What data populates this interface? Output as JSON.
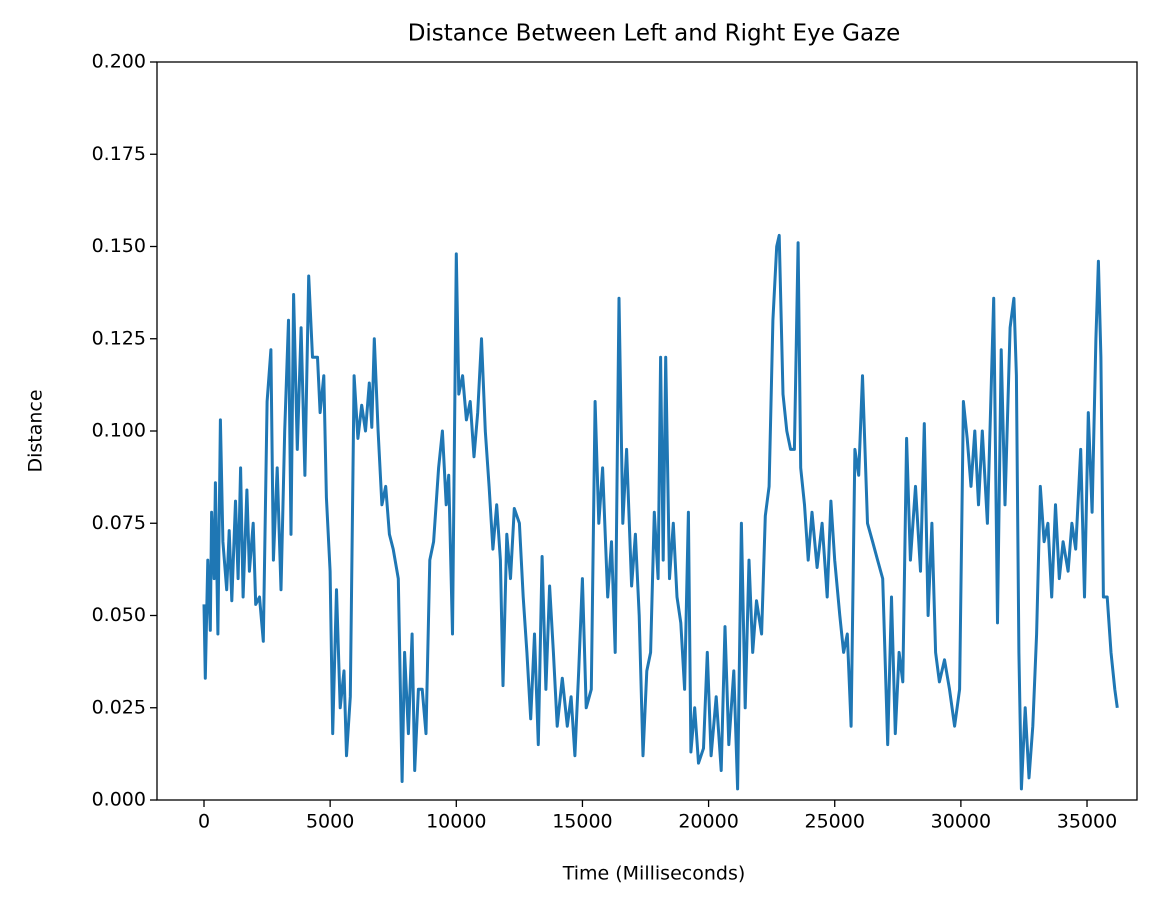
{
  "chart_data": {
    "type": "line",
    "title": "Distance Between Left and Right Eye Gaze",
    "xlabel": "Time (Milliseconds)",
    "ylabel": "Distance",
    "xlim": [
      -1863,
      36981
    ],
    "ylim": [
      0,
      0.2
    ],
    "xticks": [
      0,
      5000,
      10000,
      15000,
      20000,
      25000,
      30000,
      35000
    ],
    "yticks": [
      {
        "value": 0,
        "label": "0.000"
      },
      {
        "value": 0.025,
        "label": "0.025"
      },
      {
        "value": 0.05,
        "label": "0.050"
      },
      {
        "value": 0.075,
        "label": "0.075"
      },
      {
        "value": 0.1,
        "label": "0.100"
      },
      {
        "value": 0.125,
        "label": "0.125"
      },
      {
        "value": 0.15,
        "label": "0.150"
      },
      {
        "value": 0.175,
        "label": "0.175"
      },
      {
        "value": 0.2,
        "label": "0.200"
      }
    ],
    "x": [
      0,
      50,
      150,
      250,
      300,
      400,
      450,
      550,
      650,
      750,
      900,
      1000,
      1100,
      1250,
      1350,
      1450,
      1550,
      1700,
      1800,
      1950,
      2050,
      2200,
      2350,
      2500,
      2650,
      2750,
      2900,
      3050,
      3200,
      3350,
      3450,
      3550,
      3700,
      3850,
      4000,
      4150,
      4300,
      4500,
      4600,
      4750,
      4850,
      5000,
      5100,
      5250,
      5400,
      5550,
      5650,
      5800,
      5950,
      6100,
      6250,
      6400,
      6550,
      6650,
      6750,
      6900,
      7050,
      7200,
      7350,
      7500,
      7700,
      7850,
      7950,
      8100,
      8250,
      8350,
      8500,
      8650,
      8800,
      8950,
      9100,
      9300,
      9450,
      9600,
      9700,
      9850,
      10000,
      10100,
      10250,
      10400,
      10550,
      10700,
      10850,
      11000,
      11150,
      11300,
      11450,
      11600,
      11750,
      11850,
      12000,
      12150,
      12300,
      12500,
      12650,
      12800,
      12950,
      13100,
      13250,
      13400,
      13550,
      13700,
      13850,
      14000,
      14200,
      14400,
      14550,
      14700,
      14850,
      15000,
      15150,
      15350,
      15500,
      15650,
      15800,
      16000,
      16150,
      16300,
      16450,
      16600,
      16750,
      16950,
      17100,
      17250,
      17400,
      17550,
      17700,
      17850,
      18000,
      18100,
      18200,
      18300,
      18450,
      18600,
      18750,
      18900,
      19050,
      19200,
      19300,
      19450,
      19600,
      19800,
      19950,
      20100,
      20300,
      20500,
      20650,
      20800,
      21000,
      21150,
      21300,
      21450,
      21600,
      21750,
      21900,
      22100,
      22250,
      22400,
      22550,
      22700,
      22800,
      22950,
      23100,
      23250,
      23400,
      23550,
      23650,
      23800,
      23950,
      24100,
      24300,
      24500,
      24700,
      24850,
      25000,
      25200,
      25350,
      25500,
      25650,
      25800,
      25950,
      26100,
      26300,
      26500,
      26700,
      26900,
      27100,
      27250,
      27400,
      27550,
      27700,
      27850,
      28000,
      28200,
      28400,
      28550,
      28700,
      28850,
      29000,
      29150,
      29350,
      29550,
      29750,
      29950,
      30100,
      30250,
      30400,
      30550,
      30700,
      30850,
      31050,
      31300,
      31450,
      31600,
      31750,
      31950,
      32100,
      32200,
      32300,
      32400,
      32550,
      32700,
      32850,
      33000,
      33150,
      33300,
      33450,
      33600,
      33750,
      33900,
      34050,
      34250,
      34400,
      34550,
      34750,
      34900,
      35050,
      35200,
      35350,
      35450,
      35550,
      35650,
      35800,
      35950,
      36100,
      36200
    ],
    "series": [
      {
        "color": "#1f77b4",
        "values": [
          0.053,
          0.033,
          0.065,
          0.046,
          0.078,
          0.06,
          0.086,
          0.045,
          0.103,
          0.07,
          0.057,
          0.073,
          0.054,
          0.081,
          0.06,
          0.09,
          0.055,
          0.084,
          0.062,
          0.075,
          0.053,
          0.055,
          0.043,
          0.108,
          0.122,
          0.065,
          0.09,
          0.057,
          0.1,
          0.13,
          0.072,
          0.137,
          0.095,
          0.128,
          0.088,
          0.142,
          0.12,
          0.12,
          0.105,
          0.115,
          0.082,
          0.062,
          0.018,
          0.057,
          0.025,
          0.035,
          0.012,
          0.028,
          0.115,
          0.098,
          0.107,
          0.1,
          0.113,
          0.101,
          0.125,
          0.1,
          0.08,
          0.085,
          0.072,
          0.068,
          0.06,
          0.005,
          0.04,
          0.018,
          0.045,
          0.008,
          0.03,
          0.03,
          0.018,
          0.065,
          0.07,
          0.09,
          0.1,
          0.08,
          0.088,
          0.045,
          0.148,
          0.11,
          0.115,
          0.103,
          0.108,
          0.093,
          0.105,
          0.125,
          0.1,
          0.085,
          0.068,
          0.08,
          0.065,
          0.031,
          0.072,
          0.06,
          0.079,
          0.075,
          0.055,
          0.04,
          0.022,
          0.045,
          0.015,
          0.066,
          0.03,
          0.058,
          0.04,
          0.02,
          0.033,
          0.02,
          0.028,
          0.012,
          0.035,
          0.06,
          0.025,
          0.03,
          0.108,
          0.075,
          0.09,
          0.055,
          0.07,
          0.04,
          0.136,
          0.075,
          0.095,
          0.058,
          0.072,
          0.05,
          0.012,
          0.035,
          0.04,
          0.078,
          0.06,
          0.12,
          0.065,
          0.12,
          0.06,
          0.075,
          0.055,
          0.048,
          0.03,
          0.078,
          0.013,
          0.025,
          0.01,
          0.014,
          0.04,
          0.012,
          0.028,
          0.008,
          0.047,
          0.015,
          0.035,
          0.003,
          0.075,
          0.025,
          0.065,
          0.04,
          0.054,
          0.045,
          0.077,
          0.085,
          0.13,
          0.15,
          0.153,
          0.11,
          0.1,
          0.095,
          0.095,
          0.151,
          0.09,
          0.08,
          0.065,
          0.078,
          0.063,
          0.075,
          0.055,
          0.081,
          0.065,
          0.05,
          0.04,
          0.045,
          0.02,
          0.095,
          0.088,
          0.115,
          0.075,
          0.07,
          0.065,
          0.06,
          0.015,
          0.055,
          0.018,
          0.04,
          0.032,
          0.098,
          0.065,
          0.085,
          0.062,
          0.102,
          0.05,
          0.075,
          0.04,
          0.032,
          0.038,
          0.03,
          0.02,
          0.03,
          0.108,
          0.098,
          0.085,
          0.1,
          0.08,
          0.1,
          0.075,
          0.136,
          0.048,
          0.122,
          0.08,
          0.128,
          0.136,
          0.115,
          0.04,
          0.003,
          0.025,
          0.006,
          0.02,
          0.045,
          0.085,
          0.07,
          0.075,
          0.055,
          0.08,
          0.06,
          0.07,
          0.062,
          0.075,
          0.068,
          0.095,
          0.055,
          0.105,
          0.078,
          0.125,
          0.146,
          0.12,
          0.055,
          0.055,
          0.04,
          0.03,
          0.025
        ]
      }
    ]
  }
}
